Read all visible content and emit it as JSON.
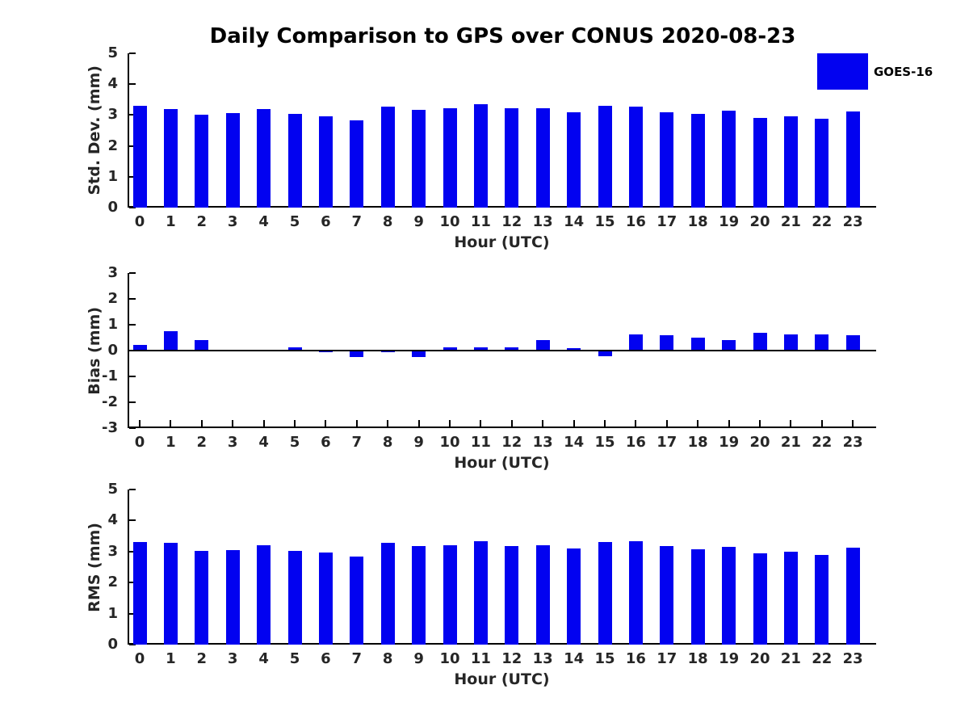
{
  "title": "Daily Comparison to GPS over CONUS 2020-08-23",
  "legend": {
    "label": "GOES-16",
    "position": "top-right"
  },
  "colors": {
    "bar": "#0202f0",
    "axis": "#000000",
    "tick_label": "#262626",
    "background": "#ffffff"
  },
  "chart_data": [
    {
      "type": "bar",
      "panel": "std-dev",
      "title": "Daily Comparison to GPS over CONUS 2020-08-23",
      "xlabel": "Hour (UTC)",
      "ylabel": "Std. Dev. (mm)",
      "ylim": [
        0,
        5
      ],
      "yticks": [
        0,
        1,
        2,
        3,
        4,
        5
      ],
      "grid": false,
      "legend_entries": [
        "GOES-16"
      ],
      "categories": [
        "0",
        "1",
        "2",
        "3",
        "4",
        "5",
        "6",
        "7",
        "8",
        "9",
        "10",
        "11",
        "12",
        "13",
        "14",
        "15",
        "16",
        "17",
        "18",
        "19",
        "20",
        "21",
        "22",
        "23"
      ],
      "series": [
        {
          "name": "GOES-16",
          "values": [
            3.3,
            3.19,
            3.01,
            3.07,
            3.19,
            3.03,
            2.95,
            2.82,
            3.26,
            3.16,
            3.22,
            3.34,
            3.21,
            3.22,
            3.1,
            3.31,
            3.28,
            3.1,
            3.04,
            3.13,
            2.9,
            2.97,
            2.87,
            3.11
          ]
        }
      ]
    },
    {
      "type": "bar",
      "panel": "bias",
      "title": "",
      "xlabel": "Hour (UTC)",
      "ylabel": "Bias (mm)",
      "ylim": [
        -3,
        3
      ],
      "yticks": [
        -3,
        -2,
        -1,
        0,
        1,
        2,
        3
      ],
      "grid": false,
      "legend_entries": [
        "GOES-16"
      ],
      "categories": [
        "0",
        "1",
        "2",
        "3",
        "4",
        "5",
        "6",
        "7",
        "8",
        "9",
        "10",
        "11",
        "12",
        "13",
        "14",
        "15",
        "16",
        "17",
        "18",
        "19",
        "20",
        "21",
        "22",
        "23"
      ],
      "series": [
        {
          "name": "GOES-16",
          "values": [
            0.21,
            0.76,
            0.42,
            0.01,
            -0.03,
            0.12,
            -0.06,
            -0.26,
            -0.07,
            -0.26,
            0.12,
            0.12,
            0.12,
            0.4,
            0.08,
            -0.23,
            0.63,
            0.58,
            0.49,
            0.4,
            0.68,
            0.62,
            0.64,
            0.58
          ]
        }
      ]
    },
    {
      "type": "bar",
      "panel": "rms",
      "title": "",
      "xlabel": "Hour (UTC)",
      "ylabel": "RMS (mm)",
      "ylim": [
        0,
        5
      ],
      "yticks": [
        0,
        1,
        2,
        3,
        4,
        5
      ],
      "grid": false,
      "legend_entries": [
        "GOES-16"
      ],
      "categories": [
        "0",
        "1",
        "2",
        "3",
        "4",
        "5",
        "6",
        "7",
        "8",
        "9",
        "10",
        "11",
        "12",
        "13",
        "14",
        "15",
        "16",
        "17",
        "18",
        "19",
        "20",
        "21",
        "22",
        "23"
      ],
      "series": [
        {
          "name": "GOES-16",
          "values": [
            3.3,
            3.28,
            3.01,
            3.04,
            3.2,
            3.01,
            2.96,
            2.83,
            3.27,
            3.17,
            3.2,
            3.33,
            3.19,
            3.2,
            3.1,
            3.3,
            3.33,
            3.17,
            3.07,
            3.15,
            2.94,
            3.0,
            2.88,
            3.12
          ]
        }
      ]
    }
  ]
}
